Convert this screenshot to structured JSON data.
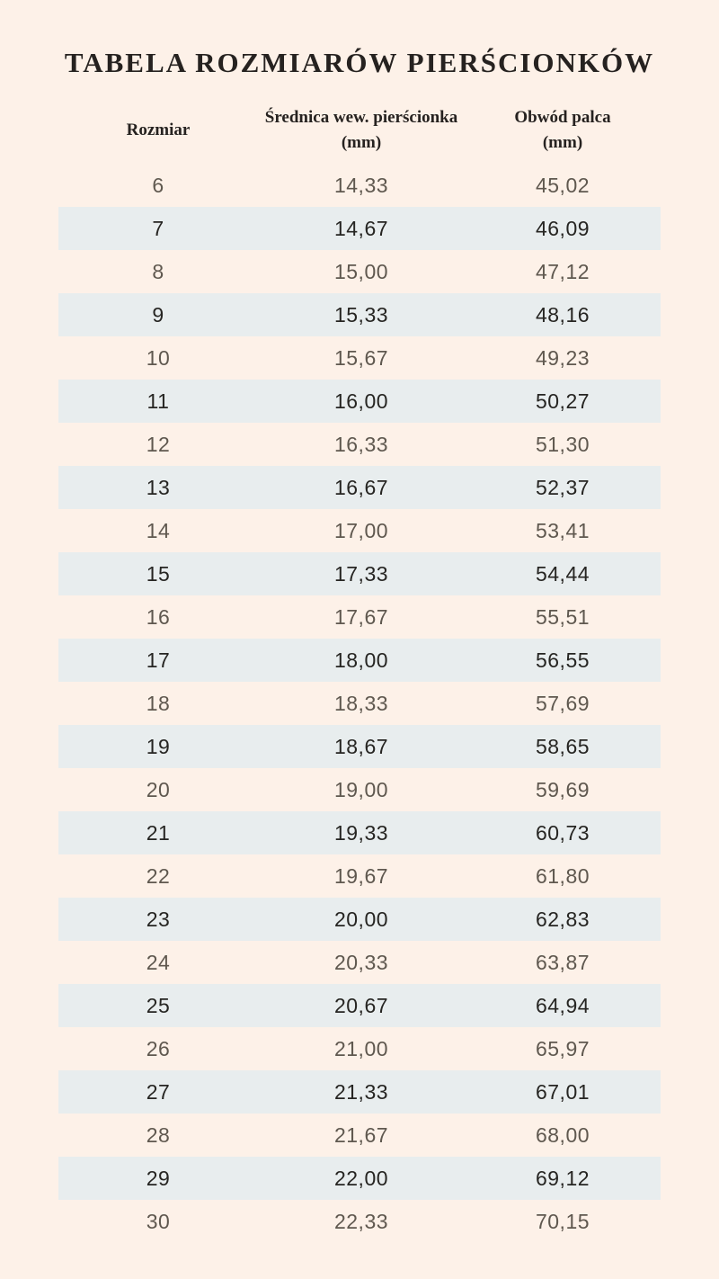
{
  "page": {
    "background_color": "#fdf1e8",
    "stripe_color": "#e8edee",
    "text_dark_color": "#262220",
    "text_light_row_color": "#5f584f"
  },
  "title": "TABELA ROZMIARÓW PIERŚCIONKÓW",
  "table": {
    "columns": [
      {
        "title": "Rozmiar",
        "unit": ""
      },
      {
        "title": "Średnica wew. pierścionka",
        "unit": "(mm)"
      },
      {
        "title": "Obwód palca",
        "unit": "(mm)"
      }
    ],
    "rows": [
      [
        "6",
        "14,33",
        "45,02"
      ],
      [
        "7",
        "14,67",
        "46,09"
      ],
      [
        "8",
        "15,00",
        "47,12"
      ],
      [
        "9",
        "15,33",
        "48,16"
      ],
      [
        "10",
        "15,67",
        "49,23"
      ],
      [
        "11",
        "16,00",
        "50,27"
      ],
      [
        "12",
        "16,33",
        "51,30"
      ],
      [
        "13",
        "16,67",
        "52,37"
      ],
      [
        "14",
        "17,00",
        "53,41"
      ],
      [
        "15",
        "17,33",
        "54,44"
      ],
      [
        "16",
        "17,67",
        "55,51"
      ],
      [
        "17",
        "18,00",
        "56,55"
      ],
      [
        "18",
        "18,33",
        "57,69"
      ],
      [
        "19",
        "18,67",
        "58,65"
      ],
      [
        "20",
        "19,00",
        "59,69"
      ],
      [
        "21",
        "19,33",
        "60,73"
      ],
      [
        "22",
        "19,67",
        "61,80"
      ],
      [
        "23",
        "20,00",
        "62,83"
      ],
      [
        "24",
        "20,33",
        "63,87"
      ],
      [
        "25",
        "20,67",
        "64,94"
      ],
      [
        "26",
        "21,00",
        "65,97"
      ],
      [
        "27",
        "21,33",
        "67,01"
      ],
      [
        "28",
        "21,67",
        "68,00"
      ],
      [
        "29",
        "22,00",
        "69,12"
      ],
      [
        "30",
        "22,33",
        "70,15"
      ]
    ]
  },
  "chart_data": {
    "type": "table",
    "title": "TABELA ROZMIARÓW PIERŚCIONKÓW",
    "columns": [
      "Rozmiar",
      "Średnica wew. pierścionka (mm)",
      "Obwód palca (mm)"
    ],
    "rows": [
      [
        6,
        "14,33",
        "45,02"
      ],
      [
        7,
        "14,67",
        "46,09"
      ],
      [
        8,
        "15,00",
        "47,12"
      ],
      [
        9,
        "15,33",
        "48,16"
      ],
      [
        10,
        "15,67",
        "49,23"
      ],
      [
        11,
        "16,00",
        "50,27"
      ],
      [
        12,
        "16,33",
        "51,30"
      ],
      [
        13,
        "16,67",
        "52,37"
      ],
      [
        14,
        "17,00",
        "53,41"
      ],
      [
        15,
        "17,33",
        "54,44"
      ],
      [
        16,
        "17,67",
        "55,51"
      ],
      [
        17,
        "18,00",
        "56,55"
      ],
      [
        18,
        "18,33",
        "57,69"
      ],
      [
        19,
        "18,67",
        "58,65"
      ],
      [
        20,
        "19,00",
        "59,69"
      ],
      [
        21,
        "19,33",
        "60,73"
      ],
      [
        22,
        "19,67",
        "61,80"
      ],
      [
        23,
        "20,00",
        "62,83"
      ],
      [
        24,
        "20,33",
        "63,87"
      ],
      [
        25,
        "20,67",
        "64,94"
      ],
      [
        26,
        "21,00",
        "65,97"
      ],
      [
        27,
        "21,33",
        "67,01"
      ],
      [
        28,
        "21,67",
        "68,00"
      ],
      [
        29,
        "22,00",
        "69,12"
      ],
      [
        30,
        "22,33",
        "70,15"
      ]
    ],
    "layout": {
      "striped_rows": "every second data row (sizes 7,9,11,...29) has light blue-gray background",
      "alignment": "all columns center-aligned",
      "gridlines": "none"
    }
  }
}
